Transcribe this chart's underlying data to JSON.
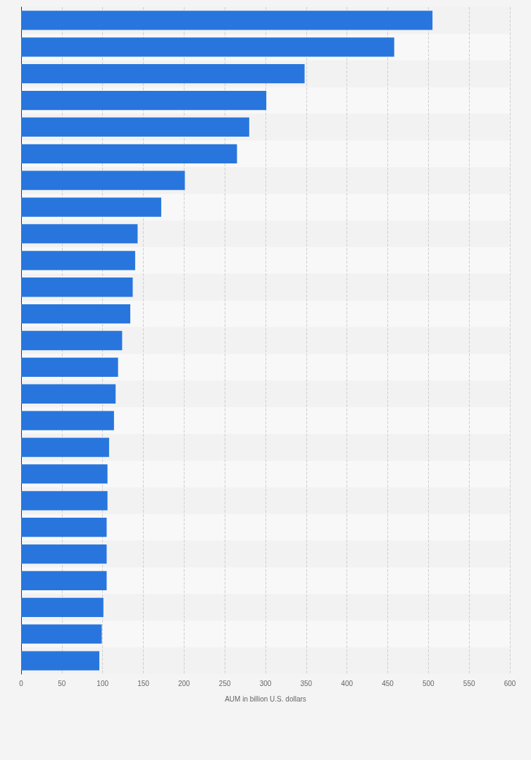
{
  "chart_data": {
    "type": "bar",
    "orientation": "horizontal",
    "xlabel": "AUM in billion U.S. dollars",
    "categories": [
      null,
      null,
      null,
      null,
      null,
      null,
      null,
      null,
      null,
      null,
      null,
      null,
      null,
      null,
      null,
      null,
      null,
      null,
      null,
      null,
      null,
      null,
      null,
      null,
      null
    ],
    "values": [
      505,
      458,
      348,
      301,
      280,
      265,
      201,
      172,
      143,
      140,
      137,
      134,
      124,
      119,
      116,
      114,
      108,
      106,
      106,
      105,
      105,
      105,
      101,
      99,
      96
    ],
    "color": "#2876dd",
    "xlim": [
      0,
      600
    ],
    "xticks": [
      0,
      50,
      100,
      150,
      200,
      250,
      300,
      350,
      400,
      450,
      500,
      550,
      600
    ],
    "grid": "x"
  }
}
